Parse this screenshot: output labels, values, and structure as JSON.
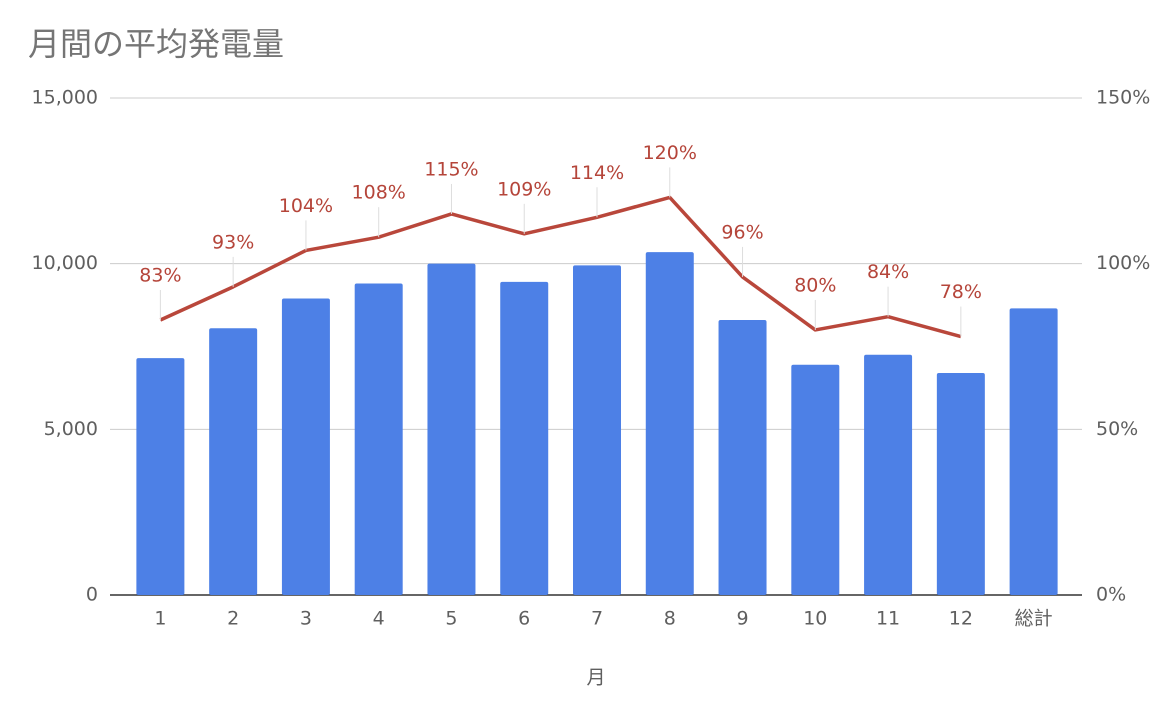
{
  "chart_data": {
    "type": "bar",
    "title": "月間の平均発電量",
    "x_label": "月",
    "categories": [
      "1",
      "2",
      "3",
      "4",
      "5",
      "6",
      "7",
      "8",
      "9",
      "10",
      "11",
      "12",
      "総計"
    ],
    "series": [
      {
        "type": "bar",
        "color": "#4d80e6",
        "values": [
          7150,
          8050,
          8950,
          9400,
          10000,
          9450,
          9950,
          10350,
          8300,
          6950,
          7250,
          6700,
          8650
        ]
      },
      {
        "type": "line",
        "axis": "y2",
        "color": "#b9473b",
        "values": [
          83,
          93,
          104,
          108,
          115,
          109,
          114,
          120,
          96,
          80,
          84,
          78,
          null
        ],
        "value_labels": [
          "83%",
          "93%",
          "104%",
          "108%",
          "115%",
          "109%",
          "114%",
          "120%",
          "96%",
          "80%",
          "84%",
          "78%",
          null
        ]
      }
    ],
    "ylim": [
      0,
      15000
    ],
    "yticks": [
      0,
      {
        "value": 5000,
        "label": "5,000"
      },
      {
        "value": 10000,
        "label": "10,000"
      },
      {
        "value": 15000,
        "label": "15,000"
      }
    ],
    "y2lim": [
      0,
      150
    ],
    "y2ticks": [
      {
        "value": 0,
        "label": "0%"
      },
      {
        "value": 50,
        "label": "50%"
      },
      {
        "value": 100,
        "label": "100%"
      },
      {
        "value": 150,
        "label": "150%"
      }
    ],
    "grid": true
  }
}
